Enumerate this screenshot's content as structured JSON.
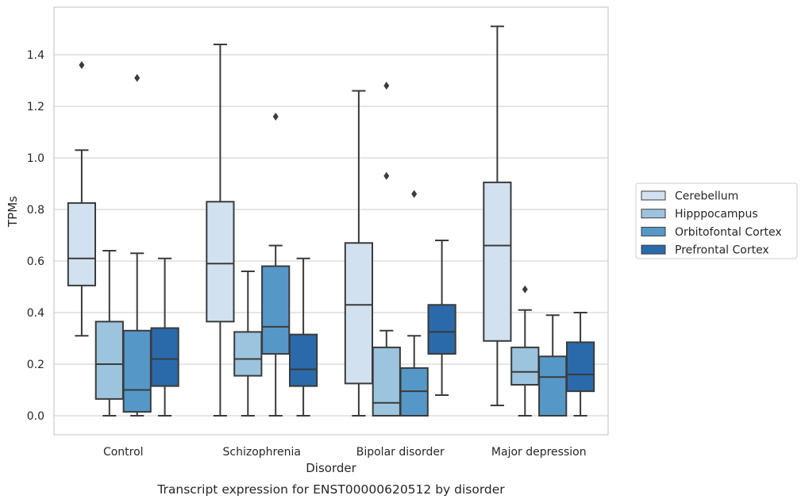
{
  "chart_data": {
    "type": "box",
    "caption": "Transcript expression for ENST00000620512 by disorder",
    "xlabel": "Disorder",
    "ylabel": "TPMs",
    "ylim": [
      -0.07,
      1.6
    ],
    "yticks": [
      "0.0",
      "0.2",
      "0.4",
      "0.6",
      "0.8",
      "1.0",
      "1.2",
      "1.4"
    ],
    "grid": "horizontal",
    "legend_position": "right",
    "categories": [
      "Control",
      "Schizophrenia",
      "Bipolar disorder",
      "Major depression"
    ],
    "series": [
      {
        "name": "Cerebellum",
        "color": "#d2e1f0",
        "boxes": [
          {
            "whisker_low": 0.31,
            "q1": 0.505,
            "median": 0.61,
            "q3": 0.825,
            "whisker_high": 1.03,
            "outliers": [
              1.36
            ]
          },
          {
            "whisker_low": 0.0,
            "q1": 0.365,
            "median": 0.59,
            "q3": 0.83,
            "whisker_high": 1.44,
            "outliers": []
          },
          {
            "whisker_low": 0.0,
            "q1": 0.125,
            "median": 0.43,
            "q3": 0.67,
            "whisker_high": 1.26,
            "outliers": []
          },
          {
            "whisker_low": 0.04,
            "q1": 0.29,
            "median": 0.66,
            "q3": 0.905,
            "whisker_high": 1.51,
            "outliers": []
          }
        ]
      },
      {
        "name": "Hipppocampus",
        "color": "#9cc4de",
        "boxes": [
          {
            "whisker_low": 0.0,
            "q1": 0.065,
            "median": 0.2,
            "q3": 0.365,
            "whisker_high": 0.64,
            "outliers": []
          },
          {
            "whisker_low": 0.0,
            "q1": 0.155,
            "median": 0.22,
            "q3": 0.325,
            "whisker_high": 0.56,
            "outliers": []
          },
          {
            "whisker_low": 0.0,
            "q1": 0.0,
            "median": 0.05,
            "q3": 0.265,
            "whisker_high": 0.33,
            "outliers": [
              1.28,
              0.93
            ]
          },
          {
            "whisker_low": 0.0,
            "q1": 0.12,
            "median": 0.17,
            "q3": 0.265,
            "whisker_high": 0.41,
            "outliers": [
              0.49
            ]
          }
        ]
      },
      {
        "name": "Orbitofontal Cortex",
        "color": "#5598c8",
        "boxes": [
          {
            "whisker_low": 0.0,
            "q1": 0.015,
            "median": 0.1,
            "q3": 0.33,
            "whisker_high": 0.63,
            "outliers": [
              1.31
            ]
          },
          {
            "whisker_low": 0.0,
            "q1": 0.24,
            "median": 0.345,
            "q3": 0.58,
            "whisker_high": 0.66,
            "outliers": [
              1.16
            ]
          },
          {
            "whisker_low": 0.0,
            "q1": 0.0,
            "median": 0.095,
            "q3": 0.185,
            "whisker_high": 0.31,
            "outliers": [
              0.86
            ]
          },
          {
            "whisker_low": 0.0,
            "q1": 0.0,
            "median": 0.15,
            "q3": 0.23,
            "whisker_high": 0.39,
            "outliers": []
          }
        ]
      },
      {
        "name": "Prefrontal Cortex",
        "color": "#2a6aab",
        "boxes": [
          {
            "whisker_low": 0.0,
            "q1": 0.115,
            "median": 0.22,
            "q3": 0.34,
            "whisker_high": 0.61,
            "outliers": []
          },
          {
            "whisker_low": 0.0,
            "q1": 0.115,
            "median": 0.18,
            "q3": 0.315,
            "whisker_high": 0.61,
            "outliers": []
          },
          {
            "whisker_low": 0.08,
            "q1": 0.24,
            "median": 0.325,
            "q3": 0.43,
            "whisker_high": 0.68,
            "outliers": []
          },
          {
            "whisker_low": 0.0,
            "q1": 0.095,
            "median": 0.16,
            "q3": 0.285,
            "whisker_high": 0.4,
            "outliers": []
          }
        ]
      }
    ]
  }
}
